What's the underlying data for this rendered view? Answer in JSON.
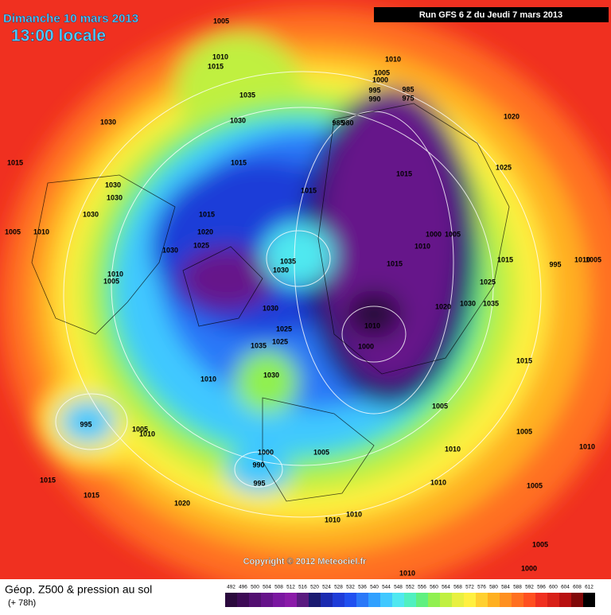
{
  "header": {
    "date": "Dimanche 10 mars 2013",
    "time": "13:00 locale",
    "run": "Run GFS 6 Z du Jeudi 7 mars 2013"
  },
  "map": {
    "copyright": "Copyright © 2012 Meteociel.fr",
    "pressure_labels": [
      1005,
      1010,
      1015,
      1035,
      1030,
      1030,
      1015,
      1030,
      1030,
      1030,
      1005,
      1010,
      1015,
      1015,
      1015,
      1020,
      1025,
      1030,
      1010,
      1005,
      1035,
      1030,
      1030,
      1025,
      1025,
      1035,
      1030,
      1010,
      995,
      1005,
      1010,
      1000,
      1005,
      990,
      995,
      1015,
      1015,
      1020,
      1010,
      1010,
      1005,
      1000,
      1010,
      1005,
      1010,
      1010,
      1005,
      1005,
      1010,
      1015,
      1000,
      1010,
      1020,
      1030,
      1035,
      1025,
      1015,
      1010,
      1000,
      1005,
      1015,
      995,
      1010,
      1005,
      1015,
      1025,
      1020,
      1010,
      1005,
      1000,
      995,
      990,
      985,
      975,
      985,
      980
    ]
  },
  "footer": {
    "title": "Géop. Z500 & pression au sol",
    "lead": "(+ 78h)"
  },
  "legend": {
    "values": [
      492,
      496,
      500,
      504,
      508,
      512,
      516,
      520,
      524,
      528,
      532,
      536,
      540,
      544,
      548,
      552,
      556,
      560,
      564,
      568,
      572,
      576,
      580,
      584,
      588,
      592,
      596,
      600,
      604,
      608,
      612
    ],
    "colors": [
      "#2b0a3d",
      "#3d0a55",
      "#520f70",
      "#66128a",
      "#7a16a0",
      "#8a1aa8",
      "#5a1a80",
      "#1a1a70",
      "#1a2ab0",
      "#1e3cd8",
      "#2050f0",
      "#2a78f8",
      "#30a0ff",
      "#40c8ff",
      "#50e8f0",
      "#50f0c0",
      "#60f080",
      "#90f050",
      "#c0f040",
      "#e8f040",
      "#fff040",
      "#ffd030",
      "#ffb020",
      "#ff9020",
      "#ff7020",
      "#ff5020",
      "#f03020",
      "#d82018",
      "#b81010",
      "#800808",
      "#000000"
    ]
  }
}
